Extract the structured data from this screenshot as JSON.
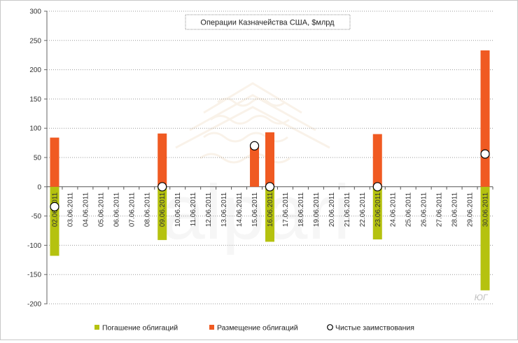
{
  "chart_data": {
    "type": "bar",
    "title": "Операции Казначейства США, $млрд",
    "xlabel": "",
    "ylabel": "",
    "ylim": [
      -200,
      300
    ],
    "yticks": [
      300,
      250,
      200,
      150,
      100,
      50,
      0,
      -50,
      -100,
      -150,
      -200
    ],
    "grid": true,
    "legend_position": "bottom",
    "categories": [
      "02.06.2011",
      "03.06.2011",
      "04.06.2011",
      "05.06.2011",
      "06.06.2011",
      "07.06.2011",
      "08.06.2011",
      "09.06.2011",
      "10.06.2011",
      "11.06.2011",
      "12.06.2011",
      "13.06.2011",
      "14.06.2011",
      "15.06.2011",
      "16.06.2011",
      "17.06.2011",
      "18.06.2011",
      "19.06.2011",
      "20.06.2011",
      "21.06.2011",
      "22.06.2011",
      "23.06.2011",
      "24.06.2011",
      "25.06.2011",
      "26.06.2011",
      "27.06.2011",
      "28.06.2011",
      "29.06.2011",
      "30.06.2011"
    ],
    "series": [
      {
        "name": "Погашение облигаций",
        "kind": "bar",
        "color": "#b5c20f",
        "values": [
          -118,
          0,
          0,
          0,
          0,
          0,
          0,
          -91,
          0,
          0,
          0,
          0,
          0,
          0,
          -94,
          0,
          0,
          0,
          0,
          0,
          0,
          -90,
          0,
          0,
          0,
          0,
          0,
          0,
          -177
        ]
      },
      {
        "name": "Размещение облигаций",
        "kind": "bar",
        "color": "#f05a22",
        "values": [
          84,
          0,
          0,
          0,
          0,
          0,
          0,
          91,
          0,
          0,
          0,
          0,
          0,
          70,
          93,
          0,
          0,
          0,
          0,
          0,
          0,
          90,
          0,
          0,
          0,
          0,
          0,
          0,
          233
        ]
      },
      {
        "name": "Чистые заимствования",
        "kind": "point",
        "color": "#000000",
        "points": [
          [
            0,
            -34
          ],
          [
            7,
            0
          ],
          [
            13,
            70
          ],
          [
            14,
            0
          ],
          [
            21,
            0
          ],
          [
            28,
            56
          ]
        ]
      }
    ]
  },
  "watermark": {
    "brand": "alpari",
    "corner": "ЮГ"
  }
}
